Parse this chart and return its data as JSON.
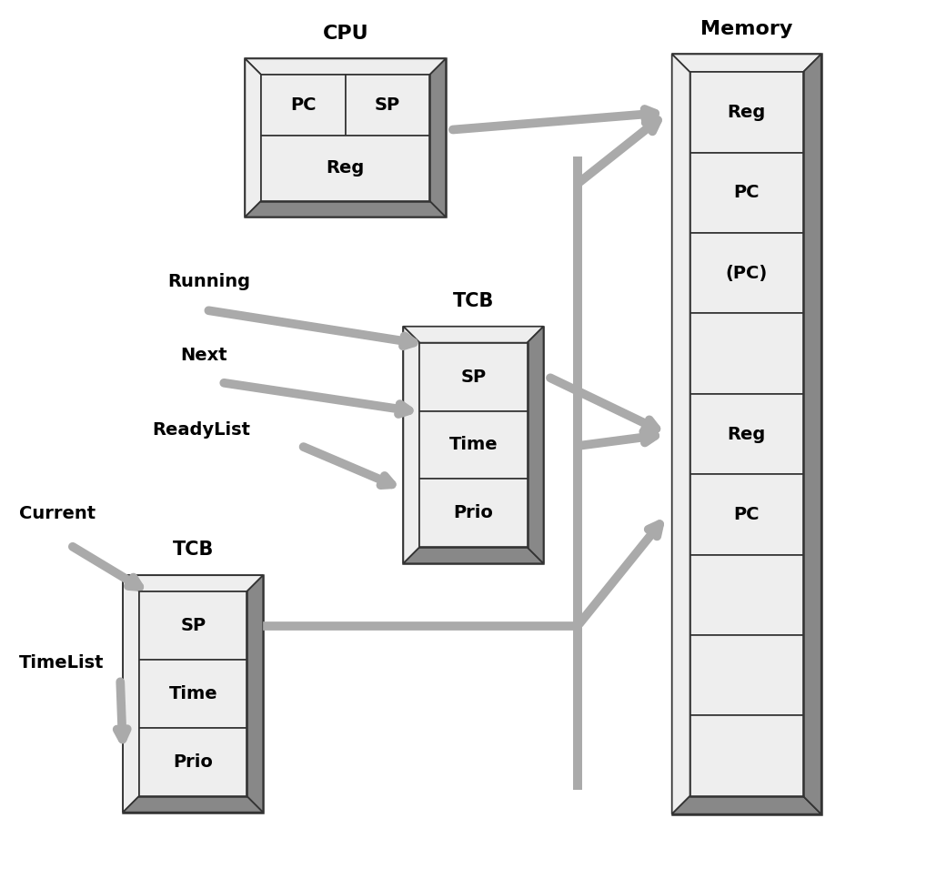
{
  "bg_color": "#ffffff",
  "fill_light": "#eeeeee",
  "fill_mid": "#bbbbbb",
  "fill_dark": "#888888",
  "fill_darkest": "#555555",
  "border_color": "#333333",
  "arrow_color": "#aaaaaa",
  "text_color": "#000000",
  "cpu_label": "CPU",
  "memory_label": "Memory",
  "tcb_label": "TCB",
  "cpu_cells_row1": [
    "PC",
    "SP"
  ],
  "cpu_cells_row2": [
    "Reg"
  ],
  "memory_cells": [
    "Reg",
    "PC",
    "(PC)",
    "",
    "Reg",
    "PC",
    "",
    "",
    ""
  ],
  "tcb_next_cells": [
    "SP",
    "Time",
    "Prio"
  ],
  "tcb_current_cells": [
    "SP",
    "Time",
    "Prio"
  ],
  "labels_running": "Running",
  "labels_next": "Next",
  "labels_readylist": "ReadyList",
  "labels_current": "Current",
  "labels_timelist": "TimeList",
  "figsize": [
    10.18,
    9.77
  ],
  "dpi": 100
}
